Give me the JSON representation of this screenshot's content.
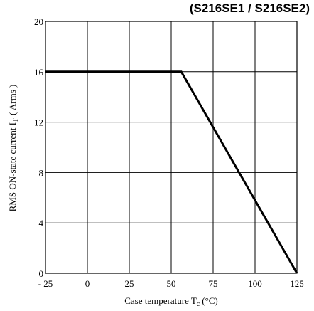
{
  "chart_data": {
    "type": "line",
    "title": "(S216SE1 / S216SE2)",
    "xlabel": "Case temperature T",
    "xlabel_sub": "c",
    "xlabel_unit": "(°C)",
    "ylabel": "RMS ON-state current I",
    "ylabel_sub": "T",
    "ylabel_unit": "( Arms )",
    "xlim": [
      -25,
      125
    ],
    "ylim": [
      0,
      20
    ],
    "x_ticks": [
      -25,
      0,
      25,
      50,
      75,
      100,
      125
    ],
    "x_tick_labels": [
      "- 25",
      "0",
      "25",
      "50",
      "75",
      "100",
      "125"
    ],
    "y_ticks": [
      0,
      4,
      8,
      12,
      16,
      20
    ],
    "y_tick_labels": [
      "0",
      "4",
      "8",
      "12",
      "16",
      "20"
    ],
    "grid": true,
    "series": [
      {
        "x": [
          -25,
          56,
          125
        ],
        "y": [
          16,
          16,
          0
        ]
      }
    ],
    "colors": {
      "line": "#000000",
      "grid": "#000000"
    }
  }
}
